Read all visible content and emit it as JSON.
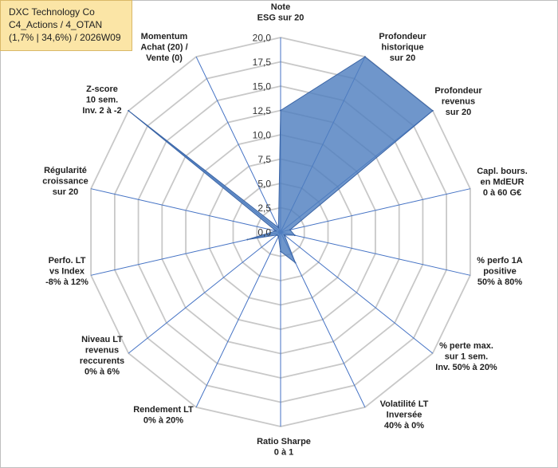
{
  "info_box": {
    "line1": "DXC Technology Co",
    "line2": "C4_Actions / 4_OTAN",
    "line3": "(1,7% | 34,6%) / 2026W09"
  },
  "colors": {
    "fill": "#4f7fbf",
    "fill_opacity": 0.82,
    "series_line": "#3a64a5",
    "grid": "#c8c8c8",
    "spoke": "#4472c4",
    "info_bg": "#fbe5a6"
  },
  "chart_data": {
    "type": "radar",
    "title": "",
    "r_range": [
      0,
      20
    ],
    "tick_labels": [
      "0,0",
      "2,5",
      "5,0",
      "7,5",
      "10,0",
      "12,5",
      "15,0",
      "17,5",
      "20,0"
    ],
    "axes": [
      {
        "label": [
          "Note",
          "ESG sur 20"
        ],
        "value": 12.5
      },
      {
        "label": [
          "Profondeur",
          "historique",
          "sur 20"
        ],
        "value": 20
      },
      {
        "label": [
          "Profondeur",
          "revenus",
          "sur 20"
        ],
        "value": 20
      },
      {
        "label": [
          "Capl. bours.",
          "en MdEUR",
          "0 à 60 G€"
        ],
        "value": 1
      },
      {
        "label": [
          "% perfo 1A",
          "positive",
          "50% à 80%"
        ],
        "value": 1.5
      },
      {
        "label": [
          "% perte max.",
          "sur 1 sem.",
          "Inv. 50% à 20%"
        ],
        "value": 0.5
      },
      {
        "label": [
          "Volatilité LT",
          "Inversée",
          "40% à 0%"
        ],
        "value": 3.5
      },
      {
        "label": [
          "Ratio Sharpe",
          "0 à 1"
        ],
        "value": 2
      },
      {
        "label": [
          "Rendement LT",
          "0% à 20%"
        ],
        "value": 0.5
      },
      {
        "label": [
          "Niveau LT",
          "revenus",
          "reccurents",
          "0% à 6%"
        ],
        "value": 0.5
      },
      {
        "label": [
          "Perfo. LT",
          "vs Index",
          "-8% à 12%"
        ],
        "value": 3.5
      },
      {
        "label": [
          "Régularité",
          "croissance",
          "sur 20"
        ],
        "value": 0.5
      },
      {
        "label": [
          "Z-score",
          "10 sem.",
          "Inv. 2 à -2"
        ],
        "value": 20
      },
      {
        "label": [
          "Momentum",
          "Achat (20) /",
          "Vente (0)"
        ],
        "value": 0.5
      }
    ]
  }
}
